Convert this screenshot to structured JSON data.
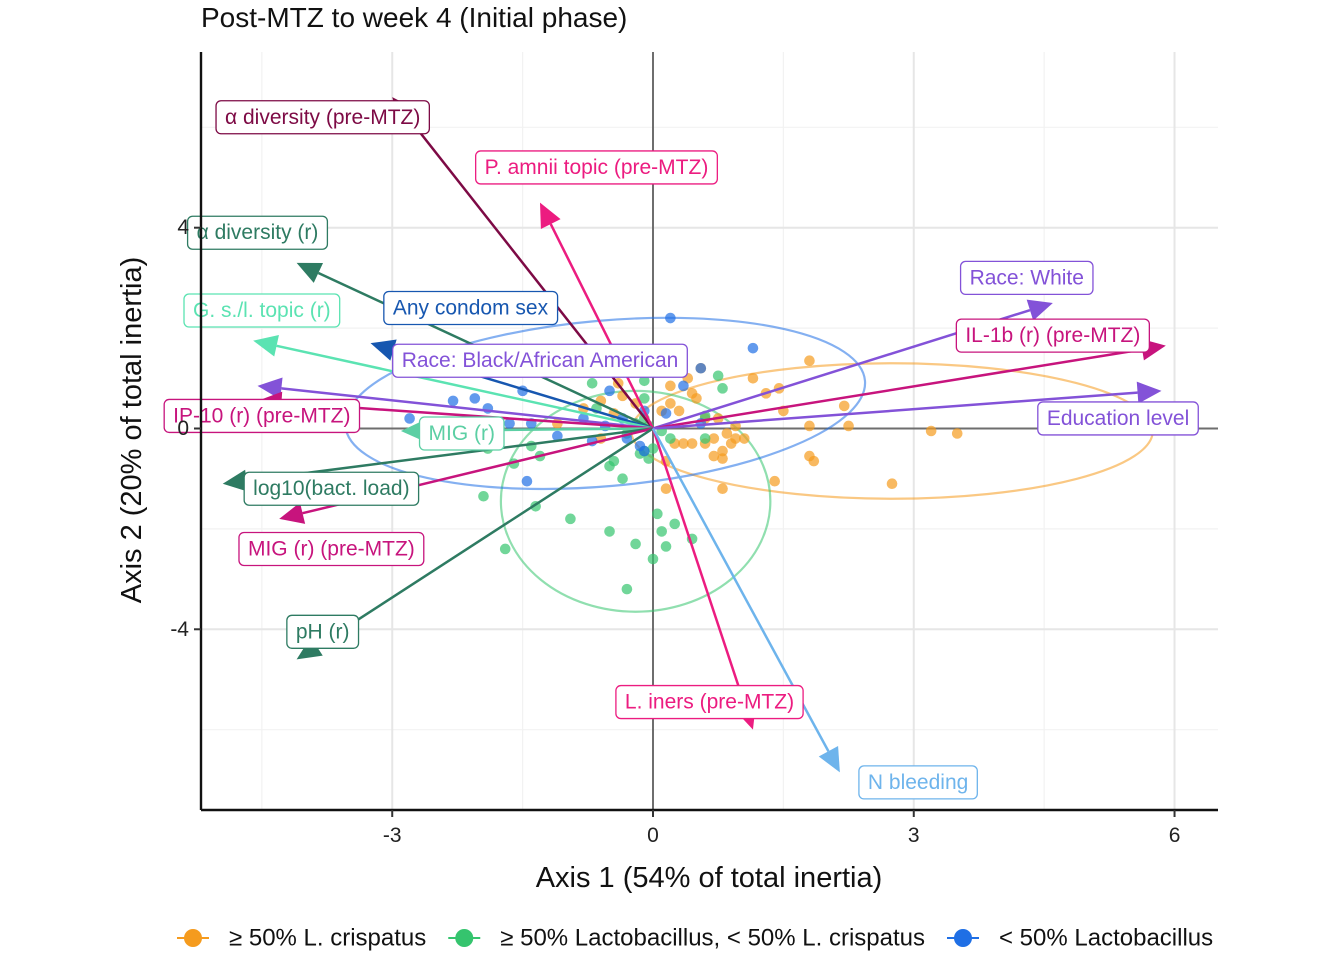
{
  "chart_data": {
    "type": "scatter",
    "title": "Post-MTZ to week 4 (Initial phase)",
    "xlabel": "Axis 1 (54% of total inertia)",
    "ylabel": "Axis 2 (20% of total inertia)",
    "xlim": [
      -5.2,
      6.5
    ],
    "ylim": [
      -7.6,
      7.5
    ],
    "xticks": [
      -3,
      0,
      3,
      6
    ],
    "xtick_labels": [
      "-3",
      "0",
      "3",
      "6"
    ],
    "yticks": [
      -4,
      0,
      4
    ],
    "ytick_labels": [
      "-4",
      "0",
      "4"
    ],
    "grid": true,
    "legend_position": "bottom",
    "groups": [
      {
        "name": "≥ 50% L. crispatus",
        "color": "#F59B1E"
      },
      {
        "name": "≥ 50% Lactobacillus, < 50% L. crispatus",
        "color": "#35C46E"
      },
      {
        "name": "< 50% Lactobacillus",
        "color": "#1F6FE5"
      }
    ],
    "ellipses": [
      {
        "group": 0,
        "center": [
          2.75,
          -0.05
        ],
        "rx": 3.0,
        "ry": 1.35,
        "angle": 0
      },
      {
        "group": 1,
        "center": [
          -0.2,
          -1.45
        ],
        "rx": 1.55,
        "ry": 2.2,
        "angle": 0
      },
      {
        "group": 2,
        "center": [
          -0.55,
          0.5
        ],
        "rx": 3.0,
        "ry": 1.65,
        "angle": -5
      }
    ],
    "points": [
      {
        "group": 0,
        "x": 3.2,
        "y": -0.05
      },
      {
        "group": 0,
        "x": 3.5,
        "y": -0.1
      },
      {
        "group": 0,
        "x": 2.75,
        "y": -1.1
      },
      {
        "group": 0,
        "x": 2.25,
        "y": 0.05
      },
      {
        "group": 0,
        "x": 2.2,
        "y": 0.45
      },
      {
        "group": 0,
        "x": 1.8,
        "y": 0.05
      },
      {
        "group": 0,
        "x": 1.8,
        "y": -0.55
      },
      {
        "group": 0,
        "x": 1.85,
        "y": -0.65
      },
      {
        "group": 0,
        "x": 1.8,
        "y": 1.35
      },
      {
        "group": 0,
        "x": 1.5,
        "y": 0.35
      },
      {
        "group": 0,
        "x": 1.3,
        "y": 0.7
      },
      {
        "group": 0,
        "x": 1.45,
        "y": 0.8
      },
      {
        "group": 0,
        "x": 1.15,
        "y": 1.0
      },
      {
        "group": 0,
        "x": 1.05,
        "y": -0.2
      },
      {
        "group": 0,
        "x": 1.4,
        "y": -1.05
      },
      {
        "group": 0,
        "x": 0.95,
        "y": 0.05
      },
      {
        "group": 0,
        "x": 0.85,
        "y": -0.1
      },
      {
        "group": 0,
        "x": 0.9,
        "y": -0.3
      },
      {
        "group": 0,
        "x": 0.8,
        "y": -0.45
      },
      {
        "group": 0,
        "x": 0.75,
        "y": 0.2
      },
      {
        "group": 0,
        "x": 0.7,
        "y": -0.2
      },
      {
        "group": 0,
        "x": 0.6,
        "y": -0.3
      },
      {
        "group": 0,
        "x": 0.8,
        "y": -0.6
      },
      {
        "group": 0,
        "x": 0.5,
        "y": 0.6
      },
      {
        "group": 0,
        "x": 0.55,
        "y": 1.2
      },
      {
        "group": 0,
        "x": 0.4,
        "y": 1.0
      },
      {
        "group": 0,
        "x": 0.45,
        "y": 0.7
      },
      {
        "group": 0,
        "x": 0.45,
        "y": -0.3
      },
      {
        "group": 0,
        "x": 0.35,
        "y": -0.3
      },
      {
        "group": 0,
        "x": 0.25,
        "y": -0.3
      },
      {
        "group": 0,
        "x": 0.3,
        "y": 0.35
      },
      {
        "group": 0,
        "x": 0.1,
        "y": 0.35
      },
      {
        "group": 0,
        "x": 0.2,
        "y": 0.85
      },
      {
        "group": 0,
        "x": 0.2,
        "y": 0.5
      },
      {
        "group": 0,
        "x": 0.15,
        "y": -0.65
      },
      {
        "group": 0,
        "x": 0.15,
        "y": -1.2
      },
      {
        "group": 0,
        "x": -0.2,
        "y": 0.5
      },
      {
        "group": 0,
        "x": -0.4,
        "y": 0.9
      },
      {
        "group": 0,
        "x": -0.35,
        "y": 0.65
      },
      {
        "group": 0,
        "x": -0.45,
        "y": 0.3
      },
      {
        "group": 0,
        "x": -0.6,
        "y": -0.2
      },
      {
        "group": 0,
        "x": -0.8,
        "y": 0.4
      },
      {
        "group": 0,
        "x": -1.1,
        "y": 0.1
      },
      {
        "group": 0,
        "x": -0.6,
        "y": 0.55
      },
      {
        "group": 0,
        "x": 0.7,
        "y": -0.55
      },
      {
        "group": 0,
        "x": 0.95,
        "y": -0.2
      },
      {
        "group": 0,
        "x": 0.6,
        "y": 0.2
      },
      {
        "group": 0,
        "x": 0.8,
        "y": -1.2
      },
      {
        "group": 1,
        "x": -0.5,
        "y": -0.75
      },
      {
        "group": 1,
        "x": -0.45,
        "y": -0.65
      },
      {
        "group": 1,
        "x": -0.3,
        "y": -0.1
      },
      {
        "group": 1,
        "x": -0.05,
        "y": 0.05
      },
      {
        "group": 1,
        "x": -0.1,
        "y": -0.45
      },
      {
        "group": 1,
        "x": -0.05,
        "y": -0.6
      },
      {
        "group": 1,
        "x": 0.0,
        "y": -0.4
      },
      {
        "group": 1,
        "x": 0.1,
        "y": -0.05
      },
      {
        "group": 1,
        "x": 0.2,
        "y": -0.2
      },
      {
        "group": 1,
        "x": -0.1,
        "y": 0.2
      },
      {
        "group": 1,
        "x": -0.2,
        "y": 0.1
      },
      {
        "group": 1,
        "x": -0.1,
        "y": 0.6
      },
      {
        "group": 1,
        "x": -0.1,
        "y": 0.95
      },
      {
        "group": 1,
        "x": -0.65,
        "y": 0.4
      },
      {
        "group": 1,
        "x": -0.7,
        "y": 0.9
      },
      {
        "group": 1,
        "x": 0.05,
        "y": -1.7
      },
      {
        "group": 1,
        "x": 0.1,
        "y": -2.05
      },
      {
        "group": 1,
        "x": 0.25,
        "y": -1.9
      },
      {
        "group": 1,
        "x": 0.15,
        "y": -2.35
      },
      {
        "group": 1,
        "x": 0.0,
        "y": -2.6
      },
      {
        "group": 1,
        "x": -0.2,
        "y": -2.3
      },
      {
        "group": 1,
        "x": -0.3,
        "y": -3.2
      },
      {
        "group": 1,
        "x": -0.35,
        "y": -1.0
      },
      {
        "group": 1,
        "x": -0.5,
        "y": -2.05
      },
      {
        "group": 1,
        "x": 0.45,
        "y": -2.2
      },
      {
        "group": 1,
        "x": 0.6,
        "y": 0.25
      },
      {
        "group": 1,
        "x": 0.6,
        "y": -0.2
      },
      {
        "group": 1,
        "x": 0.8,
        "y": 0.8
      },
      {
        "group": 1,
        "x": 0.75,
        "y": 1.05
      },
      {
        "group": 1,
        "x": -0.95,
        "y": -1.8
      },
      {
        "group": 1,
        "x": -1.3,
        "y": -0.55
      },
      {
        "group": 1,
        "x": -1.4,
        "y": -0.35
      },
      {
        "group": 1,
        "x": -1.35,
        "y": -1.55
      },
      {
        "group": 1,
        "x": -1.6,
        "y": -0.7
      },
      {
        "group": 1,
        "x": -1.7,
        "y": -2.4
      },
      {
        "group": 1,
        "x": -1.9,
        "y": -0.4
      },
      {
        "group": 1,
        "x": -1.95,
        "y": -1.35
      },
      {
        "group": 1,
        "x": -2.2,
        "y": 0.0
      },
      {
        "group": 1,
        "x": -2.35,
        "y": -0.3
      },
      {
        "group": 1,
        "x": -0.15,
        "y": -0.5
      },
      {
        "group": 2,
        "x": 0.2,
        "y": 2.2
      },
      {
        "group": 2,
        "x": 1.15,
        "y": 1.6
      },
      {
        "group": 2,
        "x": 0.55,
        "y": 1.2
      },
      {
        "group": 2,
        "x": 0.35,
        "y": 0.85
      },
      {
        "group": 2,
        "x": 0.15,
        "y": 0.3
      },
      {
        "group": 2,
        "x": -0.1,
        "y": 0.35
      },
      {
        "group": 2,
        "x": -0.15,
        "y": -0.35
      },
      {
        "group": 2,
        "x": -0.1,
        "y": -0.45
      },
      {
        "group": 2,
        "x": -0.3,
        "y": -0.2
      },
      {
        "group": 2,
        "x": -0.35,
        "y": 0.2
      },
      {
        "group": 2,
        "x": -0.55,
        "y": 0.05
      },
      {
        "group": 2,
        "x": -0.7,
        "y": -0.25
      },
      {
        "group": 2,
        "x": -0.8,
        "y": 0.2
      },
      {
        "group": 2,
        "x": -1.1,
        "y": -0.15
      },
      {
        "group": 2,
        "x": -1.4,
        "y": 0.1
      },
      {
        "group": 2,
        "x": -1.5,
        "y": 0.75
      },
      {
        "group": 2,
        "x": -1.9,
        "y": 0.4
      },
      {
        "group": 2,
        "x": -2.05,
        "y": 0.6
      },
      {
        "group": 2,
        "x": -2.3,
        "y": 0.55
      },
      {
        "group": 2,
        "x": -2.8,
        "y": 0.2
      },
      {
        "group": 2,
        "x": -1.45,
        "y": -1.05
      },
      {
        "group": 2,
        "x": -0.5,
        "y": 0.75
      },
      {
        "group": 2,
        "x": 0.55,
        "y": 0.1
      },
      {
        "group": 2,
        "x": -1.65,
        "y": 0.1
      }
    ],
    "arrows": [
      {
        "label": "α diversity (pre-MTZ)",
        "x": -3.0,
        "y": 6.6,
        "color": "#7D0A45",
        "lx": -3.8,
        "ly": 6.2
      },
      {
        "label": "P. amnii topic (pre-MTZ)",
        "x": -1.3,
        "y": 4.5,
        "color": "#EC1C80",
        "lx": -0.65,
        "ly": 5.2
      },
      {
        "label": "α diversity (r)",
        "x": -4.1,
        "y": 3.3,
        "color": "#2E7B62",
        "lx": -4.55,
        "ly": 3.9
      },
      {
        "label": "Any condom sex",
        "x": -3.25,
        "y": 1.7,
        "color": "#1757B0",
        "lx": -2.1,
        "ly": 2.4
      },
      {
        "label": "G. s./l. topic (r)",
        "x": -4.6,
        "y": 1.75,
        "color": "#5BE3B2",
        "lx": -4.5,
        "ly": 2.35
      },
      {
        "label": "Race: Black/African American",
        "x": -4.55,
        "y": 0.85,
        "color": "#8352D8",
        "lx": -1.3,
        "ly": 1.35
      },
      {
        "label": "IP-10 (r) (pre-MTZ)",
        "x": -4.55,
        "y": 0.55,
        "color": "#C7147D",
        "lx": -4.5,
        "ly": 0.25
      },
      {
        "label": "MIG (r)",
        "x": -2.9,
        "y": -0.05,
        "color": "#5CCFA4",
        "lx": -2.2,
        "ly": -0.1
      },
      {
        "label": "log10(bact. load)",
        "x": -4.95,
        "y": -1.1,
        "color": "#2E7B62",
        "lx": -3.7,
        "ly": -1.2
      },
      {
        "label": "MIG (r) (pre-MTZ)",
        "x": -4.3,
        "y": -1.8,
        "color": "#C7147D",
        "lx": -3.7,
        "ly": -2.4
      },
      {
        "label": "pH (r)",
        "x": -4.1,
        "y": -4.6,
        "color": "#2E7B62",
        "lx": -3.8,
        "ly": -4.05
      },
      {
        "label": "Race: White",
        "x": 4.6,
        "y": 2.5,
        "color": "#8352D8",
        "lx": 4.3,
        "ly": 3.0
      },
      {
        "label": "IL-1b (r) (pre-MTZ)",
        "x": 5.9,
        "y": 1.65,
        "color": "#C7147D",
        "lx": 4.6,
        "ly": 1.85
      },
      {
        "label": "Education level",
        "x": 5.85,
        "y": 0.75,
        "color": "#8352D8",
        "lx": 5.35,
        "ly": 0.2
      },
      {
        "label": "L. iners (pre-MTZ)",
        "x": 1.15,
        "y": -6.0,
        "color": "#EC1C80",
        "lx": 0.65,
        "ly": -5.45
      },
      {
        "label": "N bleeding",
        "x": 2.15,
        "y": -6.85,
        "color": "#6EB4EC",
        "lx": 3.05,
        "ly": -7.05
      }
    ]
  }
}
